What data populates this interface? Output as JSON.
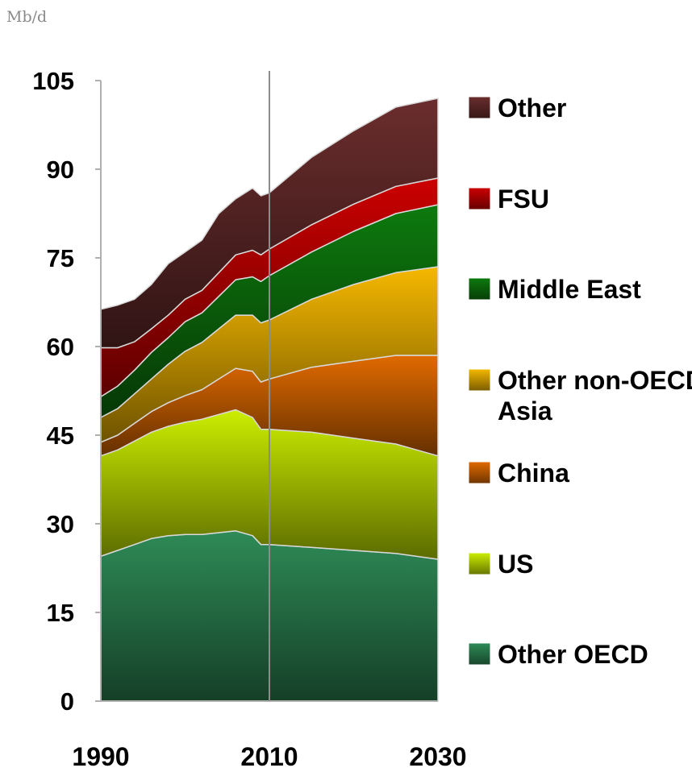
{
  "chart_data": {
    "type": "area",
    "stacked": true,
    "unit_label": "Mb/d",
    "title": "",
    "xlabel": "",
    "ylabel": "",
    "ylim": [
      0,
      105
    ],
    "yticks": [
      "0",
      "15",
      "30",
      "45",
      "60",
      "75",
      "90",
      "105"
    ],
    "xlim": [
      1990,
      2030
    ],
    "xticks": [
      "1990",
      "2010",
      "2030"
    ],
    "projection_divider_x": 2010,
    "grid": false,
    "legend_position": "right",
    "x": [
      1990,
      1992,
      1994,
      1996,
      1998,
      2000,
      2002,
      2004,
      2006,
      2008,
      2009,
      2010,
      2015,
      2020,
      2025,
      2030
    ],
    "series": [
      {
        "name": "Other OECD",
        "color": "#2e8b57",
        "values": [
          24.5,
          25.5,
          26.5,
          27.5,
          28.0,
          28.2,
          28.2,
          28.5,
          28.8,
          28.0,
          26.5,
          26.5,
          26.0,
          25.5,
          25.0,
          24.0
        ]
      },
      {
        "name": "US",
        "color": "#ccee00",
        "values": [
          17.0,
          17.0,
          17.5,
          18.0,
          18.5,
          19.0,
          19.5,
          20.0,
          20.5,
          20.0,
          19.5,
          19.5,
          19.5,
          19.0,
          18.5,
          17.5
        ]
      },
      {
        "name": "China",
        "color": "#e06a00",
        "values": [
          2.3,
          2.5,
          3.0,
          3.5,
          4.0,
          4.5,
          5.0,
          6.0,
          7.0,
          7.8,
          8.0,
          8.5,
          11.0,
          13.0,
          15.0,
          17.0
        ]
      },
      {
        "name": "Other non-OECD Asia",
        "color": "#f5b800",
        "values": [
          4.2,
          4.5,
          5.0,
          5.5,
          6.5,
          7.5,
          8.0,
          8.5,
          9.0,
          9.5,
          10.0,
          10.0,
          11.5,
          13.0,
          14.0,
          15.0
        ]
      },
      {
        "name": "Middle East",
        "color": "#0d7a0d",
        "values": [
          3.5,
          3.8,
          4.0,
          4.5,
          4.5,
          5.0,
          5.0,
          5.5,
          6.0,
          6.5,
          7.0,
          7.5,
          8.0,
          9.0,
          10.0,
          10.5
        ]
      },
      {
        "name": "FSU",
        "color": "#cc0000",
        "values": [
          8.3,
          6.5,
          4.8,
          4.0,
          3.8,
          3.8,
          3.8,
          4.0,
          4.2,
          4.5,
          4.5,
          4.5,
          4.6,
          4.6,
          4.6,
          4.5
        ]
      },
      {
        "name": "Other",
        "color": "#6b2d2d",
        "values": [
          6.5,
          7.2,
          7.2,
          7.5,
          8.7,
          8.0,
          8.5,
          10.0,
          9.5,
          10.5,
          10.0,
          9.5,
          11.4,
          12.4,
          13.4,
          13.5
        ]
      }
    ]
  }
}
